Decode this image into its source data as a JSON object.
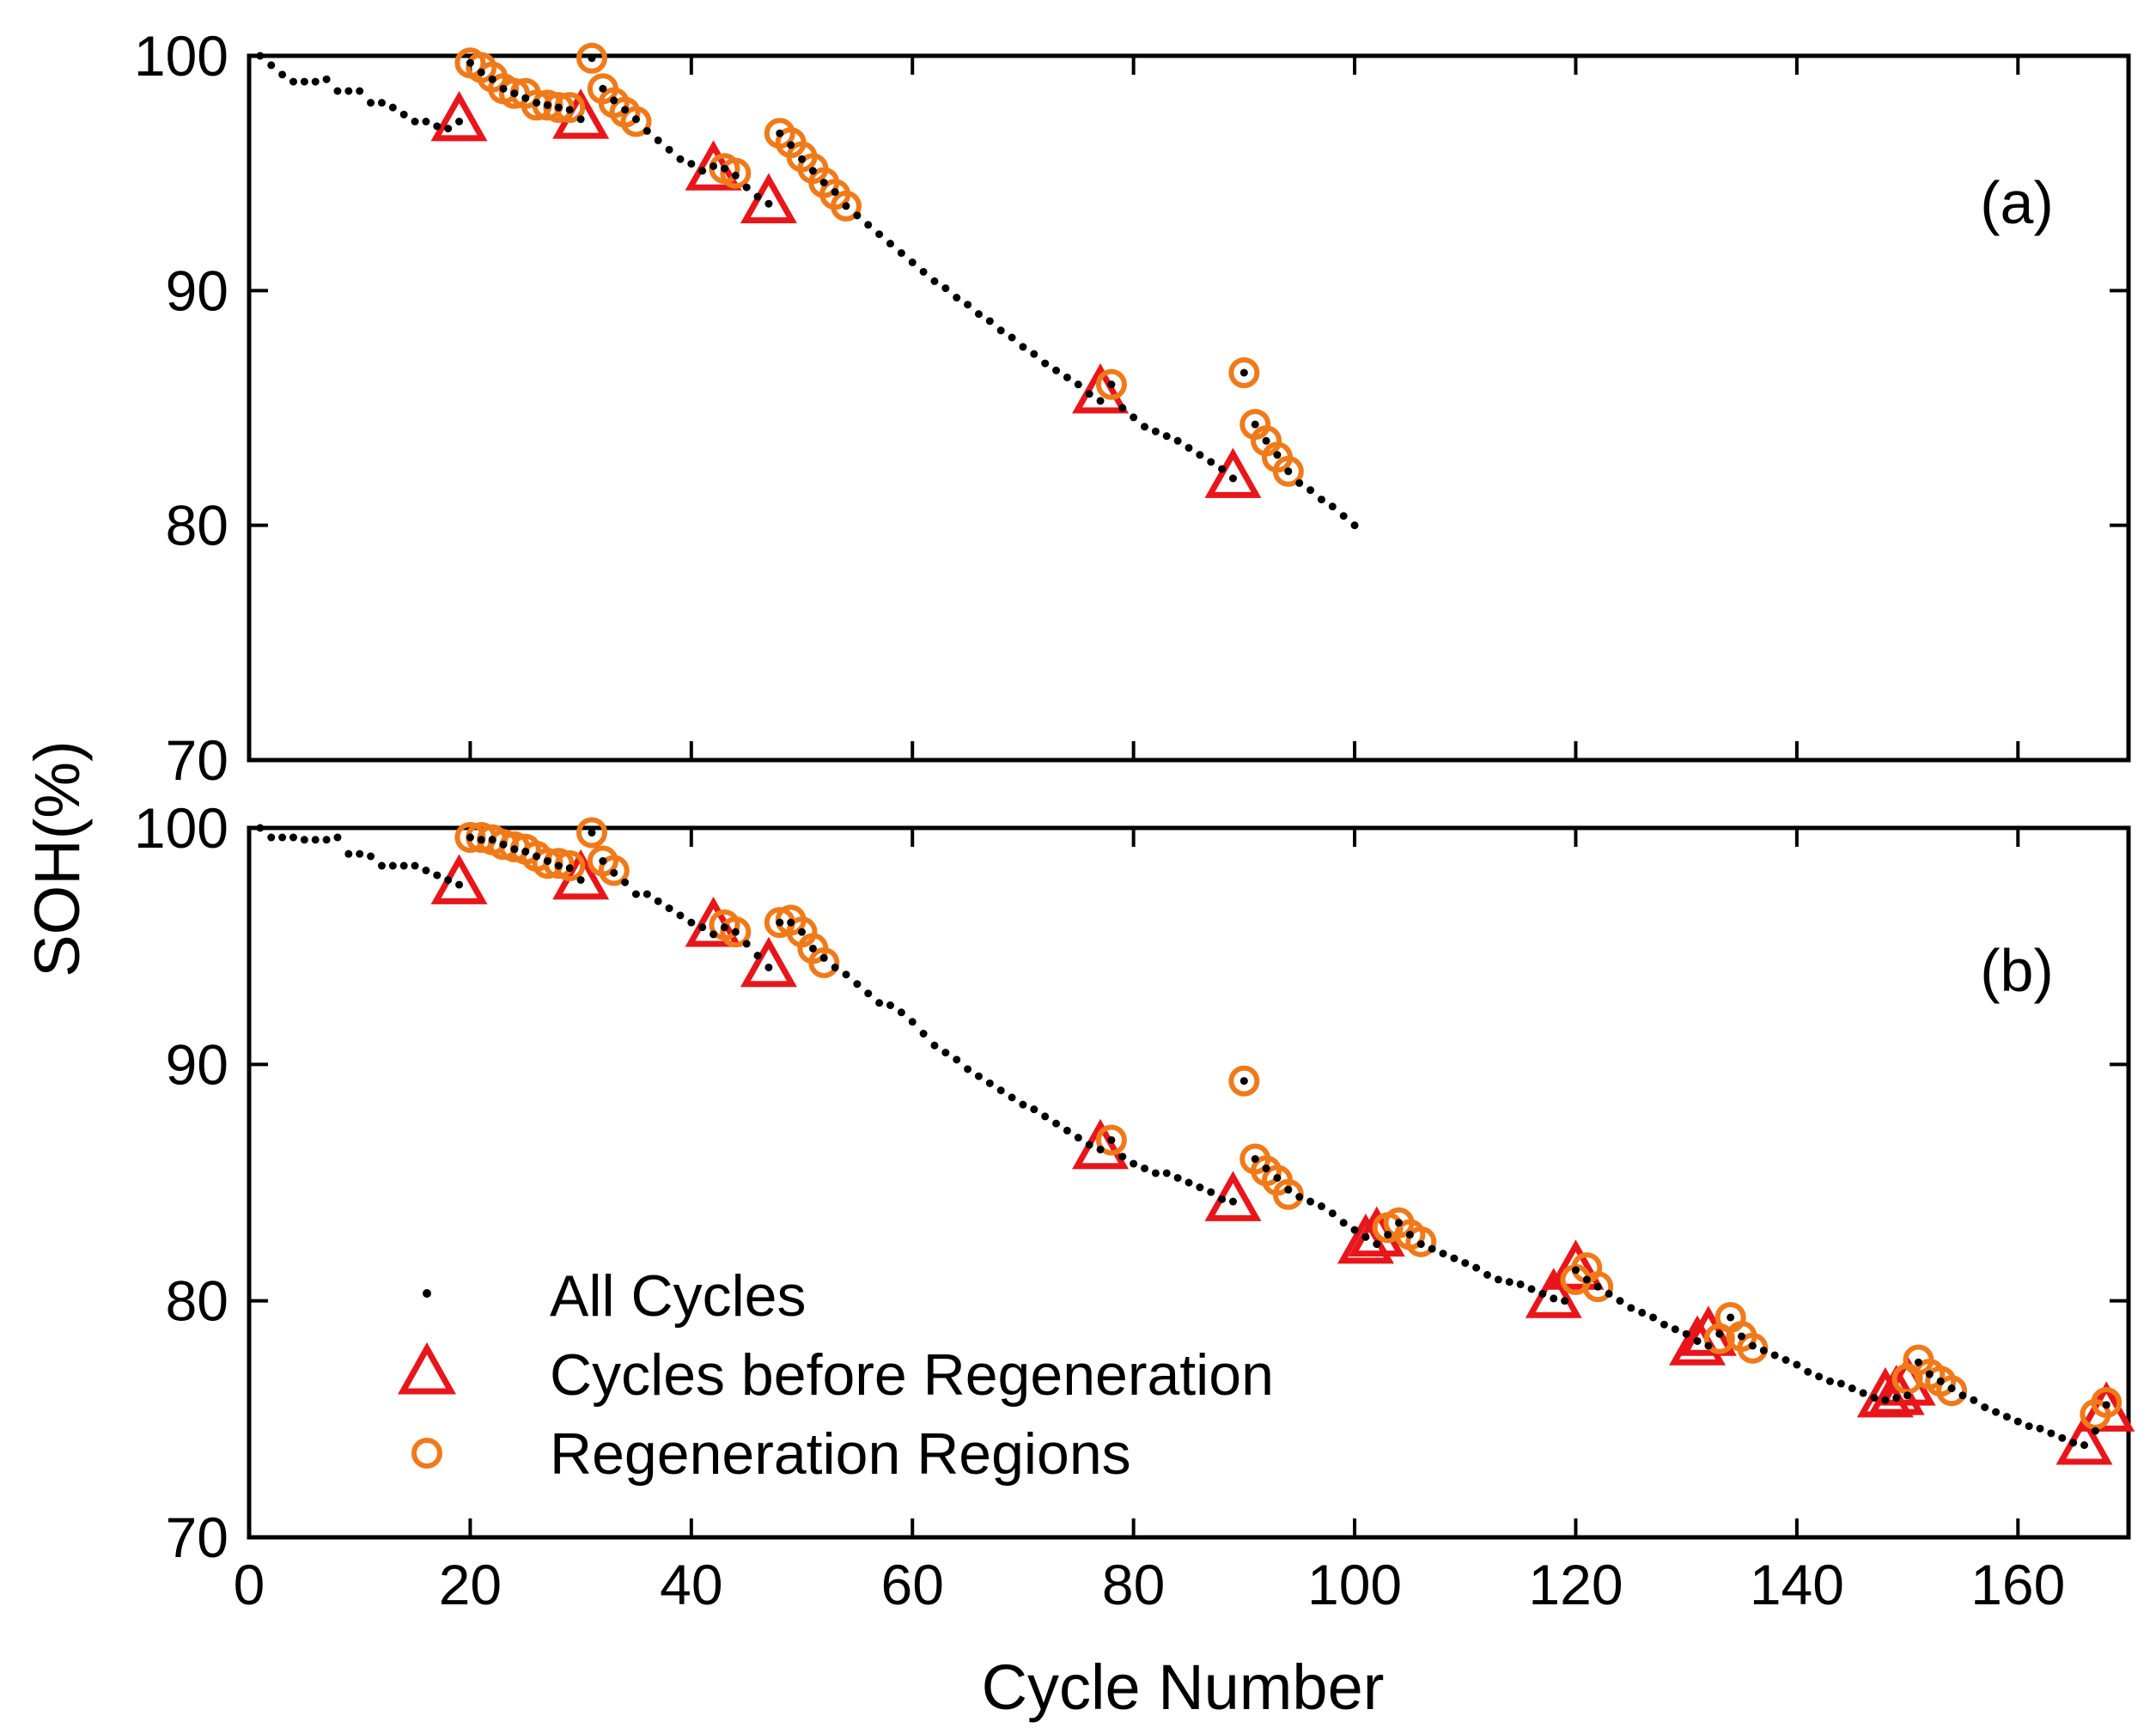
{
  "figure": {
    "ylabel": "SOH(%)",
    "xlabel": "Cycle Number",
    "colors": {
      "all_cycles": "#000000",
      "before_regeneration": "#e8161b",
      "regeneration_regions": "#f07a1a"
    },
    "legend": {
      "location": "lower-left of panel (b)",
      "entries": [
        "All Cycles",
        "Cycles before Regeneration",
        "Regeneration Regions"
      ]
    }
  },
  "chart_data": [
    {
      "type": "scatter",
      "panel_label": "(a)",
      "title": "",
      "xlabel": "",
      "ylabel": "SOH(%)",
      "xlim": [
        0,
        170
      ],
      "ylim": [
        70,
        100
      ],
      "xticks": [
        0,
        20,
        40,
        60,
        80,
        100,
        120,
        140,
        160
      ],
      "yticks": [
        70,
        80,
        90,
        100
      ],
      "ytick_labels": [
        "70",
        "80",
        "90",
        "100"
      ],
      "xtick_labels": [],
      "series": [
        {
          "name": "All Cycles",
          "marker": "dot",
          "x": [
            1,
            2,
            3,
            4,
            5,
            6,
            7,
            8,
            9,
            10,
            11,
            12,
            13,
            14,
            15,
            16,
            17,
            18,
            19,
            20,
            21,
            22,
            23,
            24,
            25,
            26,
            27,
            28,
            29,
            30,
            31,
            32,
            33,
            34,
            35,
            36,
            37,
            38,
            39,
            40,
            41,
            42,
            43,
            44,
            45,
            46,
            47,
            48,
            49,
            50,
            51,
            52,
            53,
            54,
            55,
            56,
            57,
            58,
            59,
            60,
            61,
            62,
            63,
            64,
            65,
            66,
            67,
            68,
            69,
            70,
            71,
            72,
            73,
            74,
            75,
            76,
            77,
            78,
            79,
            80,
            81,
            82,
            83,
            84,
            85,
            86,
            87,
            88,
            89,
            90,
            91,
            92,
            93,
            94,
            95,
            96,
            97,
            98,
            99,
            100
          ],
          "y": [
            100,
            99.6,
            99.2,
            98.9,
            98.9,
            98.9,
            99.0,
            98.5,
            98.5,
            98.5,
            98.0,
            98.0,
            97.8,
            97.5,
            97.2,
            97.2,
            97.0,
            96.9,
            97.2,
            99.7,
            99.3,
            99.0,
            98.6,
            98.4,
            98.2,
            98.0,
            97.9,
            97.8,
            97.7,
            97.3,
            99.9,
            98.6,
            98.1,
            97.7,
            97.3,
            96.8,
            96.4,
            96.0,
            95.6,
            95.4,
            95.1,
            95.3,
            95.2,
            94.9,
            94.4,
            94.0,
            93.7,
            96.7,
            96.2,
            95.6,
            95.1,
            94.6,
            94.2,
            93.6,
            93.2,
            92.8,
            92.4,
            92.0,
            91.6,
            91.2,
            90.8,
            90.4,
            90.1,
            89.7,
            89.4,
            89.0,
            88.7,
            88.3,
            88.0,
            87.6,
            87.3,
            86.9,
            86.6,
            86.3,
            86.0,
            85.6,
            85.3,
            86.0,
            85.0,
            84.6,
            84.2,
            84.0,
            83.8,
            83.6,
            83.3,
            83.0,
            82.7,
            82.4,
            82.0,
            86.5,
            84.3,
            83.6,
            83.0,
            82.3,
            81.8,
            81.5,
            81.1,
            80.8,
            80.4,
            80.0
          ]
        },
        {
          "name": "Cycles before Regeneration",
          "marker": "triangle",
          "x": [
            19,
            30,
            42,
            47,
            77,
            89
          ],
          "y": [
            97.2,
            97.3,
            95.1,
            93.7,
            85.6,
            82.0
          ]
        },
        {
          "name": "Regeneration Regions",
          "marker": "circle",
          "x": [
            20,
            21,
            22,
            23,
            24,
            25,
            26,
            27,
            28,
            29,
            31,
            32,
            33,
            34,
            35,
            43,
            44,
            48,
            49,
            50,
            51,
            52,
            53,
            54,
            78,
            90,
            91,
            92,
            93,
            94
          ],
          "y": [
            99.7,
            99.5,
            99.1,
            98.6,
            98.4,
            98.4,
            97.9,
            97.9,
            97.8,
            97.8,
            99.9,
            98.6,
            98.0,
            97.6,
            97.2,
            95.2,
            95.0,
            96.7,
            96.3,
            95.7,
            95.2,
            94.6,
            94.1,
            93.6,
            86.0,
            86.5,
            84.3,
            83.6,
            82.9,
            82.3
          ]
        }
      ]
    },
    {
      "type": "scatter",
      "panel_label": "(b)",
      "title": "",
      "xlabel": "Cycle Number",
      "ylabel": "SOH(%)",
      "xlim": [
        0,
        170
      ],
      "ylim": [
        70,
        100
      ],
      "xticks": [
        0,
        20,
        40,
        60,
        80,
        100,
        120,
        140,
        160
      ],
      "xtick_labels": [
        "0",
        "20",
        "40",
        "60",
        "80",
        "100",
        "120",
        "140",
        "160"
      ],
      "yticks": [
        70,
        80,
        90,
        100
      ],
      "ytick_labels": [
        "70",
        "80",
        "90",
        "100"
      ],
      "series": [
        {
          "name": "All Cycles",
          "marker": "dot",
          "x": [
            1,
            2,
            3,
            4,
            5,
            6,
            7,
            8,
            9,
            10,
            11,
            12,
            13,
            14,
            15,
            16,
            17,
            18,
            19,
            20,
            21,
            22,
            23,
            24,
            25,
            26,
            27,
            28,
            29,
            30,
            31,
            32,
            33,
            34,
            35,
            36,
            37,
            38,
            39,
            40,
            41,
            42,
            43,
            44,
            45,
            46,
            47,
            48,
            49,
            50,
            51,
            52,
            53,
            54,
            55,
            56,
            57,
            58,
            59,
            60,
            61,
            62,
            63,
            64,
            65,
            66,
            67,
            68,
            69,
            70,
            71,
            72,
            73,
            74,
            75,
            76,
            77,
            78,
            79,
            80,
            81,
            82,
            83,
            84,
            85,
            86,
            87,
            88,
            89,
            90,
            91,
            92,
            93,
            94,
            95,
            96,
            97,
            98,
            99,
            100,
            101,
            102,
            103,
            104,
            105,
            106,
            107,
            108,
            109,
            110,
            111,
            112,
            113,
            114,
            115,
            116,
            117,
            118,
            119,
            120,
            121,
            122,
            123,
            124,
            125,
            126,
            127,
            128,
            129,
            130,
            131,
            132,
            133,
            134,
            135,
            136,
            137,
            138,
            139,
            140,
            141,
            142,
            143,
            144,
            145,
            146,
            147,
            148,
            149,
            150,
            151,
            152,
            153,
            154,
            155,
            156,
            157,
            158,
            159,
            160,
            161,
            162,
            163,
            164,
            165,
            166,
            167,
            168
          ],
          "y": [
            100,
            99.6,
            99.6,
            99.6,
            99.5,
            99.5,
            99.5,
            99.6,
            98.9,
            98.9,
            98.8,
            98.4,
            98.4,
            98.4,
            98.4,
            98.2,
            98.0,
            97.8,
            97.6,
            99.6,
            99.5,
            99.5,
            99.3,
            99.1,
            99.0,
            98.8,
            98.6,
            98.4,
            98.3,
            97.8,
            99.8,
            98.6,
            98.1,
            97.7,
            97.2,
            97.2,
            96.9,
            96.6,
            96.3,
            96.0,
            95.8,
            95.5,
            95.8,
            95.6,
            95.1,
            94.6,
            94.1,
            96.0,
            96.0,
            95.6,
            94.9,
            94.5,
            94.1,
            93.8,
            93.4,
            93.0,
            92.6,
            92.5,
            92.2,
            91.8,
            91.3,
            90.8,
            90.5,
            90.2,
            89.8,
            89.5,
            89.2,
            88.9,
            88.6,
            88.3,
            88.1,
            87.8,
            87.5,
            87.2,
            86.9,
            86.6,
            86.4,
            86.8,
            86.1,
            85.8,
            85.6,
            85.4,
            85.4,
            85.2,
            85.0,
            84.8,
            84.6,
            84.3,
            84.2,
            89.3,
            86.0,
            85.6,
            85.2,
            84.7,
            84.4,
            84.2,
            84.0,
            83.7,
            83.3,
            83.0,
            82.7,
            82.4,
            82.8,
            83.3,
            82.8,
            82.4,
            82.2,
            82.0,
            81.8,
            81.6,
            81.4,
            81.1,
            80.9,
            80.8,
            80.7,
            80.5,
            80.3,
            80.1,
            80.0,
            81.3,
            80.9,
            80.6,
            80.3,
            80.0,
            79.7,
            79.5,
            79.3,
            79.0,
            78.8,
            78.6,
            78.3,
            78.1,
            78.6,
            79.3,
            78.5,
            78.1,
            77.9,
            77.7,
            77.5,
            77.3,
            77.0,
            76.8,
            76.6,
            76.5,
            76.3,
            76.1,
            75.9,
            75.8,
            75.9,
            76.0,
            77.4,
            76.9,
            76.6,
            76.3,
            76.0,
            75.8,
            75.5,
            75.3,
            75.1,
            74.9,
            74.7,
            74.6,
            74.4,
            74.2,
            74.0,
            73.9,
            74.5,
            75.6
          ]
        },
        {
          "name": "Cycles before Regeneration",
          "marker": "triangle",
          "x": [
            19,
            30,
            42,
            47,
            77,
            89,
            101,
            102,
            118,
            120,
            131,
            132,
            148,
            149,
            150,
            166,
            168
          ],
          "y": [
            97.6,
            97.8,
            95.8,
            94.1,
            86.4,
            84.2,
            82.4,
            82.7,
            80.1,
            81.3,
            78.1,
            78.5,
            75.9,
            76.0,
            76.4,
            73.9,
            75.3
          ]
        },
        {
          "name": "Regeneration Regions",
          "marker": "circle",
          "x": [
            20,
            21,
            22,
            23,
            24,
            25,
            26,
            27,
            28,
            29,
            31,
            32,
            33,
            43,
            44,
            48,
            49,
            50,
            51,
            52,
            78,
            90,
            91,
            92,
            93,
            94,
            103,
            104,
            105,
            106,
            120,
            121,
            122,
            133,
            134,
            135,
            136,
            150,
            151,
            152,
            153,
            154,
            167,
            168
          ],
          "y": [
            99.6,
            99.6,
            99.5,
            99.3,
            99.2,
            99.1,
            98.8,
            98.5,
            98.5,
            98.4,
            99.8,
            98.6,
            98.2,
            95.9,
            95.6,
            96.0,
            96.1,
            95.6,
            94.9,
            94.3,
            86.8,
            89.3,
            86.0,
            85.5,
            85.1,
            84.5,
            83.1,
            83.3,
            82.8,
            82.5,
            80.9,
            81.4,
            80.6,
            78.4,
            79.3,
            78.5,
            78.0,
            76.7,
            77.5,
            76.9,
            76.6,
            76.2,
            75.2,
            75.7
          ]
        }
      ]
    }
  ]
}
